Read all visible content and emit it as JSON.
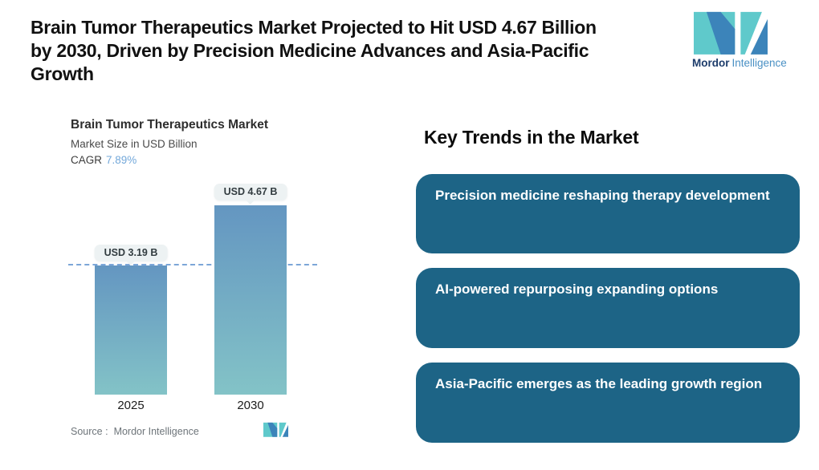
{
  "header": {
    "title_lines": [
      "Brain Tumor Therapeutics Market Projected to Hit USD 4.67 Billion",
      "by 2030, Driven by Precision Medicine Advances and Asia-Pacific",
      "Growth"
    ],
    "logo": {
      "brand_bold": "Mordor",
      "brand_light": "Intelligence"
    }
  },
  "chart": {
    "title": "Brain Tumor Therapeutics Market",
    "subtitle": "Market Size in USD Billion",
    "cagr_label": "CAGR",
    "cagr_value": "7.89%",
    "source_label": "Source :",
    "source_value": "Mordor Intelligence"
  },
  "chart_data": {
    "type": "bar",
    "categories": [
      "2025",
      "2030"
    ],
    "values": [
      3.19,
      4.67
    ],
    "value_labels": [
      "USD 3.19 B",
      "USD 4.67 B"
    ],
    "title": "Brain Tumor Therapeutics Market",
    "xlabel": "",
    "ylabel": "Market Size in USD Billion",
    "ylim": [
      0,
      5
    ],
    "cagr": "7.89%",
    "dashed_line_value": 3.19,
    "legend": [],
    "grid": false
  },
  "trends": {
    "heading": "Key Trends in the Market",
    "cards": [
      {
        "text": "Precision medicine reshaping therapy development"
      },
      {
        "text": "AI-powered repurposing expanding options"
      },
      {
        "text": "Asia-Pacific emerges as the leading growth region"
      }
    ]
  },
  "colors": {
    "card_bg": "#1d6486",
    "bar_top": "#6496c1",
    "bar_bottom": "#83c3c7",
    "dashed_line": "#7ca6d8",
    "cagr_value": "#73a8da",
    "pill_bg": "#edf2f3",
    "logo_blue": "#3c84ba",
    "logo_teal": "#5fc9cb",
    "logo_text_dark": "#1d3c6b",
    "logo_text_light": "#4a90c4"
  }
}
